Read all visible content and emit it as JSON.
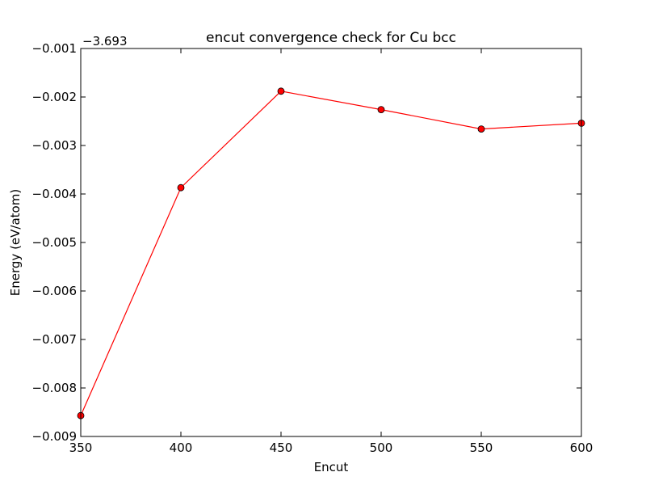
{
  "chart_data": {
    "type": "line",
    "title": "encut convergence check for Cu bcc",
    "xlabel": "Encut",
    "ylabel": "Energy (eV/atom)",
    "offset_label": "−3.693",
    "offset": -3.693,
    "xlim": [
      350,
      600
    ],
    "ylim": [
      -0.009,
      -0.001
    ],
    "xticks": [
      350,
      400,
      450,
      500,
      550,
      600
    ],
    "xtick_labels": [
      "350",
      "400",
      "450",
      "500",
      "550",
      "600"
    ],
    "yticks": [
      -0.009,
      -0.008,
      -0.007,
      -0.006,
      -0.005,
      -0.004,
      -0.003,
      -0.002,
      -0.001
    ],
    "ytick_labels": [
      "−0.009",
      "−0.008",
      "−0.007",
      "−0.006",
      "−0.005",
      "−0.004",
      "−0.003",
      "−0.002",
      "−0.001"
    ],
    "grid": false,
    "series": [
      {
        "color": "#ff0000",
        "marker": "circle",
        "x": [
          350,
          400,
          450,
          500,
          550,
          600
        ],
        "y": [
          -0.00857,
          -0.00387,
          -0.00188,
          -0.00226,
          -0.00266,
          -0.00254
        ]
      }
    ]
  }
}
